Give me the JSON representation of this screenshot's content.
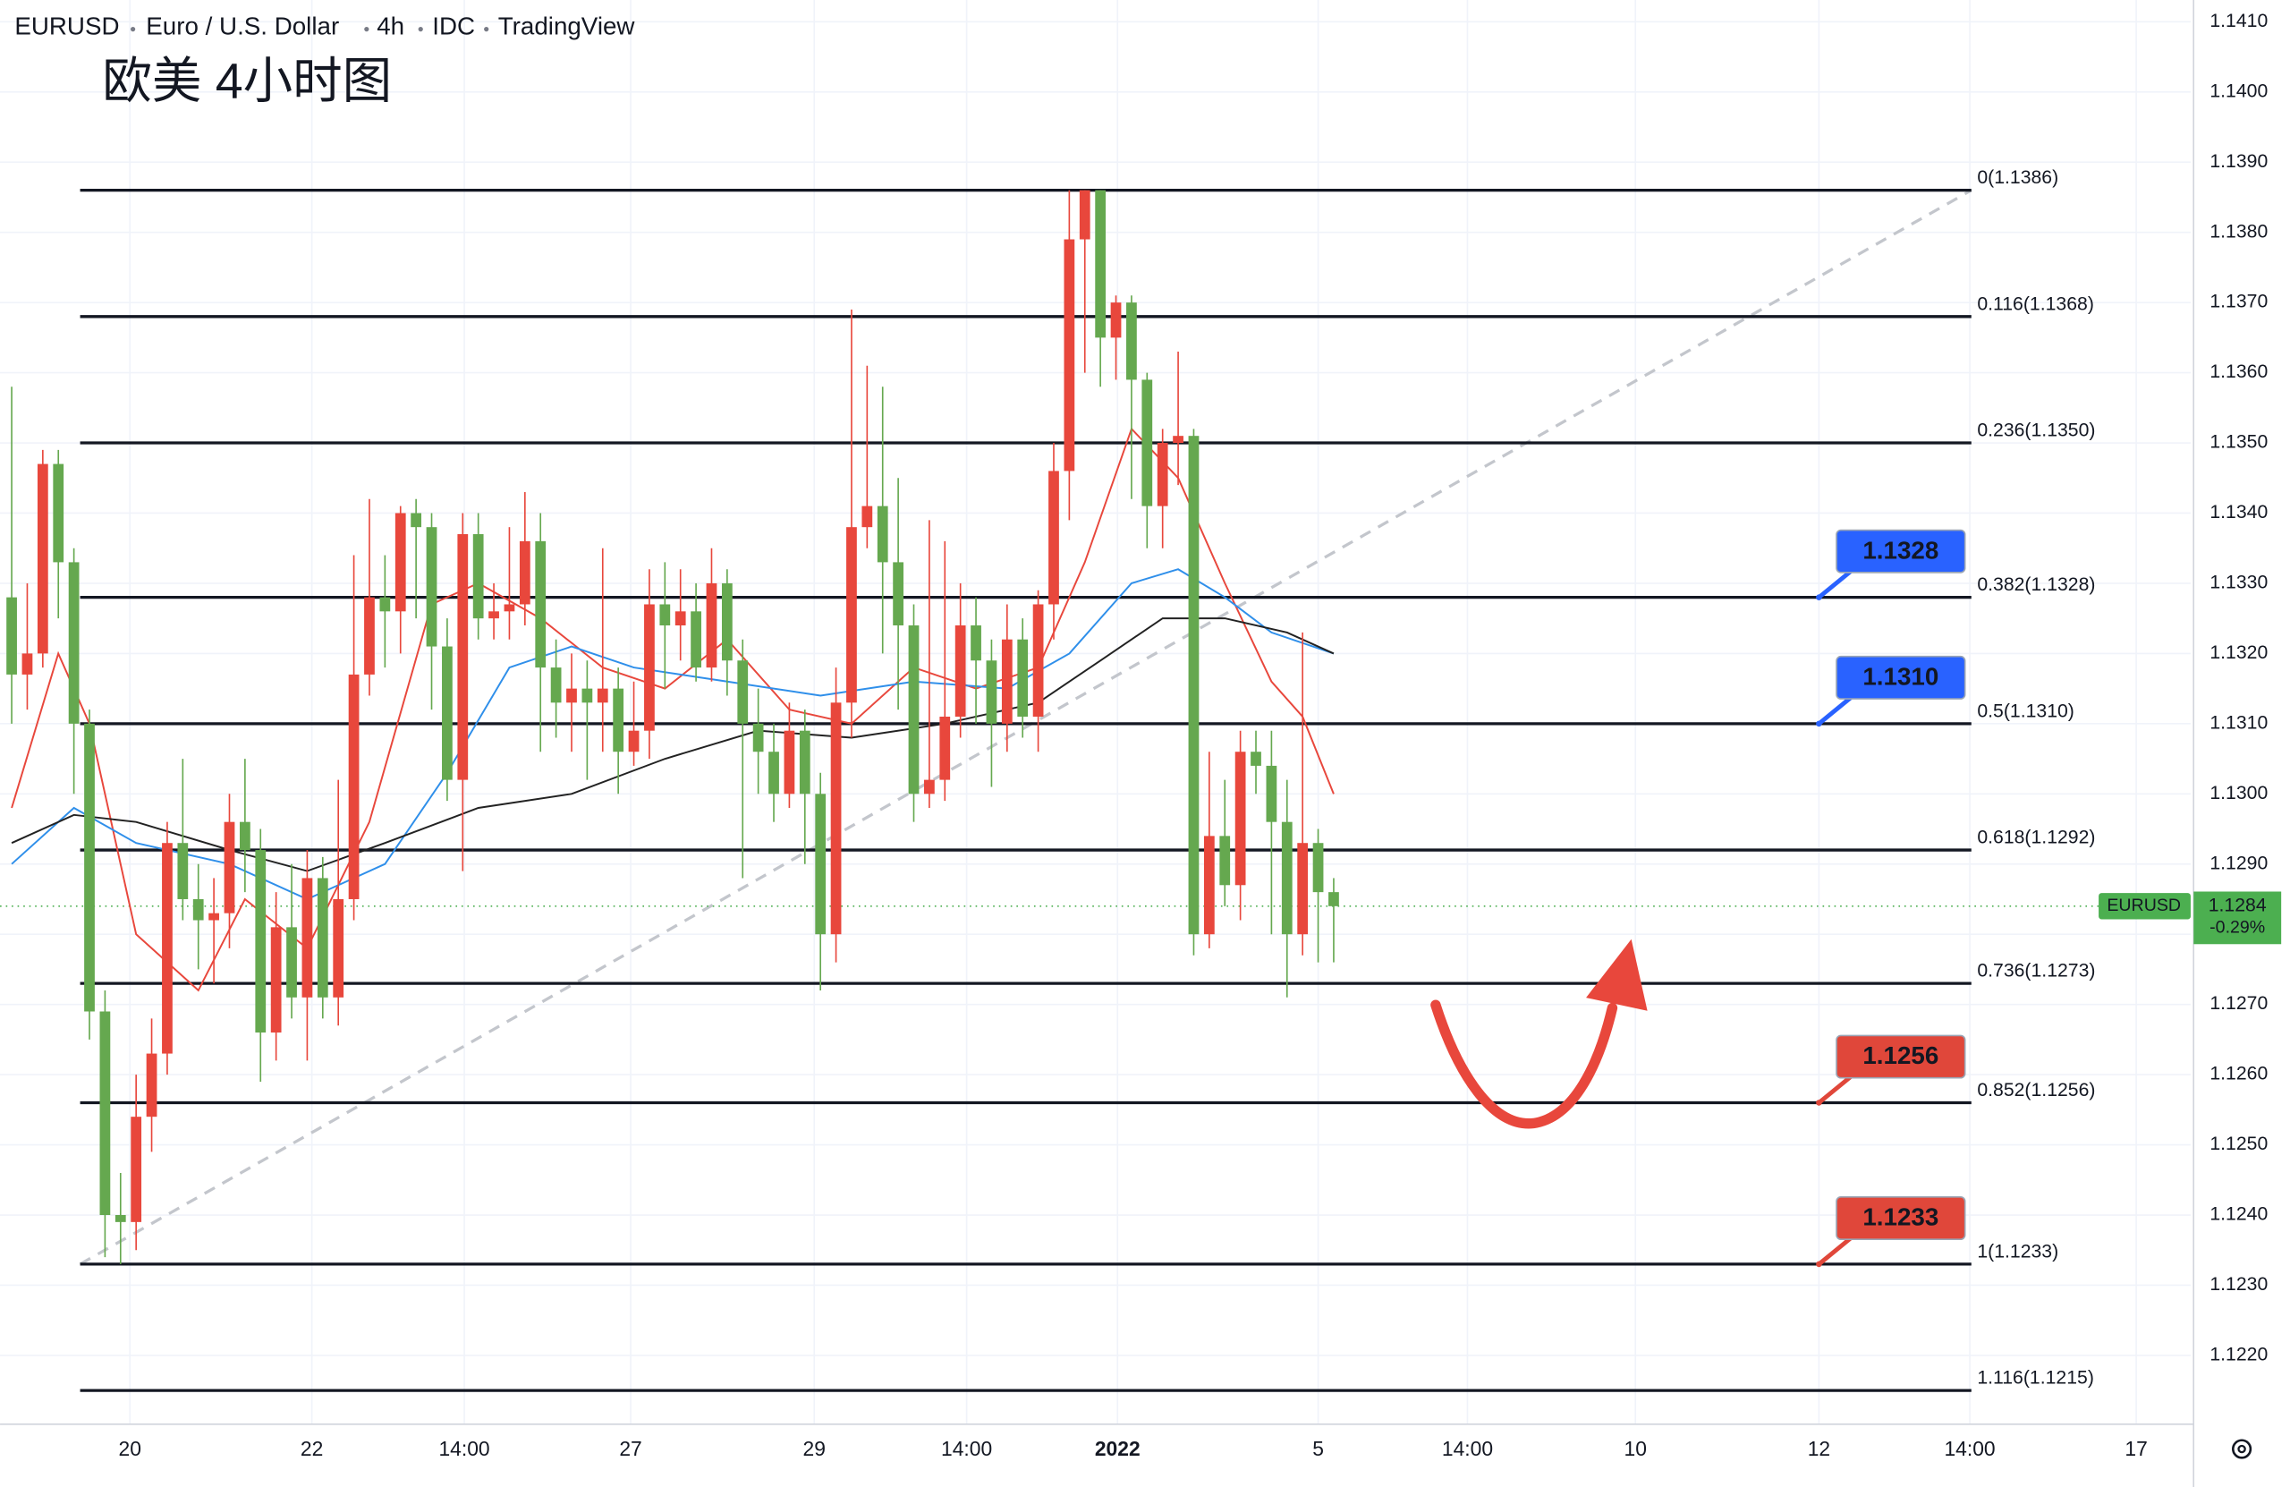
{
  "chart_data": {
    "type": "candlestick",
    "symbol": "EURUSD",
    "name": "Euro / U.S. Dollar",
    "interval": "4h",
    "source": "IDC",
    "platform": "TradingView",
    "title": "欧美 4小时图",
    "up_color": "#e8473c",
    "down_color": "#65a84f",
    "xlim": [
      -0.75,
      140.1
    ],
    "ylim": [
      1.12102,
      1.14131
    ],
    "yticks": [
      {
        "value": 1.122,
        "label": "1.1220"
      },
      {
        "value": 1.123,
        "label": "1.1230"
      },
      {
        "value": 1.124,
        "label": "1.1240"
      },
      {
        "value": 1.125,
        "label": "1.1250"
      },
      {
        "value": 1.126,
        "label": "1.1260"
      },
      {
        "value": 1.127,
        "label": "1.1270"
      },
      {
        "value": 1.128,
        "label": "1.1280"
      },
      {
        "value": 1.129,
        "label": "1.1290"
      },
      {
        "value": 1.13,
        "label": "1.1300"
      },
      {
        "value": 1.131,
        "label": "1.1310"
      },
      {
        "value": 1.132,
        "label": "1.1320"
      },
      {
        "value": 1.133,
        "label": "1.1330"
      },
      {
        "value": 1.134,
        "label": "1.1340"
      },
      {
        "value": 1.135,
        "label": "1.1350"
      },
      {
        "value": 1.136,
        "label": "1.1360"
      },
      {
        "value": 1.137,
        "label": "1.1370"
      },
      {
        "value": 1.138,
        "label": "1.1380"
      },
      {
        "value": 1.139,
        "label": "1.1390"
      },
      {
        "value": 1.14,
        "label": "1.1400"
      },
      {
        "value": 1.141,
        "label": "1.1410"
      }
    ],
    "xticks": [
      {
        "value": 7.6,
        "label": "20"
      },
      {
        "value": 19.3,
        "label": "22"
      },
      {
        "value": 29.1,
        "label": "14:00"
      },
      {
        "value": 39.8,
        "label": "27"
      },
      {
        "value": 51.6,
        "label": "29"
      },
      {
        "value": 61.4,
        "label": "14:00"
      },
      {
        "value": 71.1,
        "label": "2022"
      },
      {
        "value": 84.0,
        "label": "5"
      },
      {
        "value": 93.6,
        "label": "14:00"
      },
      {
        "value": 104.4,
        "label": "10"
      },
      {
        "value": 116.2,
        "label": "12"
      },
      {
        "value": 125.9,
        "label": "14:00"
      },
      {
        "value": 136.6,
        "label": "17"
      }
    ],
    "grid": true,
    "open": [
      1.1328,
      1.1317,
      1.132,
      1.1347,
      1.1333,
      1.131,
      1.1269,
      1.124,
      1.1239,
      1.1254,
      1.1263,
      1.1293,
      1.1285,
      1.1282,
      1.1283,
      1.1296,
      1.1292,
      1.1266,
      1.1281,
      1.1271,
      1.1288,
      1.1271,
      1.1285,
      1.1317,
      1.1328,
      1.1326,
      1.134,
      1.1338,
      1.1321,
      1.1302,
      1.1337,
      1.1325,
      1.1326,
      1.1327,
      1.1336,
      1.1318,
      1.1313,
      1.1315,
      1.1313,
      1.1315,
      1.1306,
      1.1309,
      1.1327,
      1.1324,
      1.1326,
      1.1318,
      1.133,
      1.1319,
      1.131,
      1.1306,
      1.13,
      1.1309,
      1.13,
      1.128,
      1.1313,
      1.1338,
      1.1341,
      1.1333,
      1.1324,
      1.13,
      1.1302,
      1.1311,
      1.1324,
      1.1319,
      1.131,
      1.1322,
      1.1311,
      1.1327,
      1.1346,
      1.1379,
      1.1386,
      1.1365,
      1.137,
      1.1359,
      1.1341,
      1.135,
      1.1351,
      1.128,
      1.1294,
      1.1287,
      1.1306,
      1.1304,
      1.1296,
      1.128,
      1.1293,
      1.1286
    ],
    "high": [
      1.1358,
      1.133,
      1.1349,
      1.1349,
      1.1335,
      1.1312,
      1.1272,
      1.1246,
      1.126,
      1.1268,
      1.1296,
      1.1305,
      1.129,
      1.1288,
      1.13,
      1.1305,
      1.1295,
      1.1286,
      1.129,
      1.1292,
      1.1291,
      1.1302,
      1.1334,
      1.1342,
      1.1334,
      1.1341,
      1.1342,
      1.134,
      1.1325,
      1.134,
      1.134,
      1.133,
      1.1338,
      1.1343,
      1.134,
      1.1322,
      1.132,
      1.1319,
      1.1335,
      1.1318,
      1.1316,
      1.1332,
      1.1333,
      1.1332,
      1.133,
      1.1335,
      1.1332,
      1.1322,
      1.1315,
      1.131,
      1.1313,
      1.1312,
      1.1303,
      1.1318,
      1.1369,
      1.1361,
      1.1358,
      1.1345,
      1.1327,
      1.1339,
      1.1336,
      1.133,
      1.1328,
      1.1322,
      1.1327,
      1.1325,
      1.1329,
      1.135,
      1.1386,
      1.1386,
      1.1386,
      1.1371,
      1.1371,
      1.136,
      1.1352,
      1.1363,
      1.1352,
      1.1306,
      1.1302,
      1.1309,
      1.1309,
      1.1309,
      1.1302,
      1.1323,
      1.1295,
      1.1288
    ],
    "low": [
      1.131,
      1.1312,
      1.1318,
      1.1325,
      1.13,
      1.1265,
      1.1234,
      1.1233,
      1.1235,
      1.1249,
      1.126,
      1.1282,
      1.1275,
      1.1273,
      1.1278,
      1.1286,
      1.1259,
      1.1262,
      1.1268,
      1.1262,
      1.1268,
      1.1267,
      1.1282,
      1.1314,
      1.1318,
      1.132,
      1.1325,
      1.1312,
      1.1299,
      1.1289,
      1.1322,
      1.1322,
      1.1322,
      1.1324,
      1.1306,
      1.1308,
      1.1306,
      1.1302,
      1.1306,
      1.13,
      1.1304,
      1.1305,
      1.1315,
      1.1319,
      1.1316,
      1.1316,
      1.1314,
      1.1288,
      1.13,
      1.1296,
      1.1298,
      1.129,
      1.1272,
      1.1276,
      1.1308,
      1.1335,
      1.132,
      1.1312,
      1.1296,
      1.1298,
      1.1299,
      1.1308,
      1.131,
      1.1301,
      1.1306,
      1.1308,
      1.1306,
      1.1322,
      1.1339,
      1.136,
      1.1358,
      1.1359,
      1.1342,
      1.1335,
      1.1335,
      1.1344,
      1.1277,
      1.1278,
      1.1284,
      1.1282,
      1.13,
      1.128,
      1.1271,
      1.1277,
      1.1276,
      1.1276
    ],
    "close": [
      1.1317,
      1.132,
      1.1347,
      1.1333,
      1.131,
      1.1269,
      1.124,
      1.1239,
      1.1254,
      1.1263,
      1.1293,
      1.1285,
      1.1282,
      1.1283,
      1.1296,
      1.1292,
      1.1266,
      1.1281,
      1.1271,
      1.1288,
      1.1271,
      1.1285,
      1.1317,
      1.1328,
      1.1326,
      1.134,
      1.1338,
      1.1321,
      1.1302,
      1.1337,
      1.1325,
      1.1326,
      1.1327,
      1.1336,
      1.1318,
      1.1313,
      1.1315,
      1.1313,
      1.1315,
      1.1306,
      1.1309,
      1.1327,
      1.1324,
      1.1326,
      1.1318,
      1.133,
      1.1319,
      1.131,
      1.1306,
      1.13,
      1.1309,
      1.13,
      1.128,
      1.1313,
      1.1338,
      1.1341,
      1.1333,
      1.1324,
      1.13,
      1.1302,
      1.1311,
      1.1324,
      1.1319,
      1.131,
      1.1322,
      1.1311,
      1.1327,
      1.1346,
      1.1379,
      1.1386,
      1.1365,
      1.137,
      1.1359,
      1.1341,
      1.135,
      1.1351,
      1.128,
      1.1294,
      1.1287,
      1.1306,
      1.1304,
      1.1296,
      1.128,
      1.1293,
      1.1286,
      1.1284
    ],
    "moving_averages": [
      {
        "color": "#e8473c",
        "x": [
          0,
          3,
          5,
          8,
          12,
          15,
          19,
          23,
          27,
          30,
          34,
          38,
          42,
          46,
          50,
          54,
          58,
          62,
          66,
          69,
          72,
          75,
          78,
          81,
          83,
          85
        ],
        "values": [
          1.1298,
          1.132,
          1.131,
          1.128,
          1.1272,
          1.1285,
          1.1278,
          1.1296,
          1.1327,
          1.133,
          1.1325,
          1.1318,
          1.1315,
          1.1322,
          1.1312,
          1.131,
          1.1318,
          1.1315,
          1.1318,
          1.1333,
          1.1352,
          1.1345,
          1.133,
          1.1316,
          1.1311,
          1.13
        ]
      },
      {
        "color": "#2f8fea",
        "x": [
          0,
          4,
          8,
          14,
          19,
          24,
          28,
          32,
          36,
          40,
          46,
          52,
          58,
          64,
          68,
          72,
          75,
          78,
          81,
          85
        ],
        "values": [
          1.129,
          1.1298,
          1.1293,
          1.129,
          1.1285,
          1.129,
          1.1303,
          1.1318,
          1.1321,
          1.1318,
          1.1316,
          1.1314,
          1.1316,
          1.1315,
          1.132,
          1.133,
          1.1332,
          1.1328,
          1.1323,
          1.132
        ]
      },
      {
        "color": "#222222",
        "x": [
          0,
          4,
          8,
          14,
          19,
          24,
          30,
          36,
          42,
          48,
          54,
          60,
          66,
          70,
          74,
          78,
          82,
          85
        ],
        "values": [
          1.1293,
          1.1297,
          1.1296,
          1.1292,
          1.1289,
          1.1293,
          1.1298,
          1.13,
          1.1305,
          1.1309,
          1.1308,
          1.131,
          1.1313,
          1.1319,
          1.1325,
          1.1325,
          1.1323,
          1.132
        ]
      }
    ],
    "fib_x": [
      4.4,
      126.0
    ],
    "fib_levels": [
      {
        "value": 1.1386,
        "label": "0(1.1386)"
      },
      {
        "value": 1.1368,
        "label": "0.116(1.1368)"
      },
      {
        "value": 1.135,
        "label": "0.236(1.1350)"
      },
      {
        "value": 1.1328,
        "label": "0.382(1.1328)"
      },
      {
        "value": 1.131,
        "label": "0.5(1.1310)"
      },
      {
        "value": 1.1292,
        "label": "0.618(1.1292)"
      },
      {
        "value": 1.1273,
        "label": "0.736(1.1273)"
      },
      {
        "value": 1.1256,
        "label": "0.852(1.1256)"
      },
      {
        "value": 1.1233,
        "label": "1(1.1233)"
      },
      {
        "value": 1.1215,
        "label": "1.116(1.1215)"
      }
    ],
    "trendline": {
      "x": [
        4.4,
        126.0
      ],
      "values": [
        1.1233,
        1.1386
      ]
    },
    "annotation_x": 116.2,
    "annotations": [
      {
        "value": 1.1328,
        "label": "1.1328",
        "color": "#2962ff"
      },
      {
        "value": 1.131,
        "label": "1.1310",
        "color": "#2962ff"
      },
      {
        "value": 1.1256,
        "label": "1.1256",
        "color": "#e0473a"
      },
      {
        "value": 1.1233,
        "label": "1.1233",
        "color": "#e0473a"
      }
    ],
    "last_price": 1.1284,
    "change_label": "-0.29%",
    "last_color": "#4caf50"
  }
}
